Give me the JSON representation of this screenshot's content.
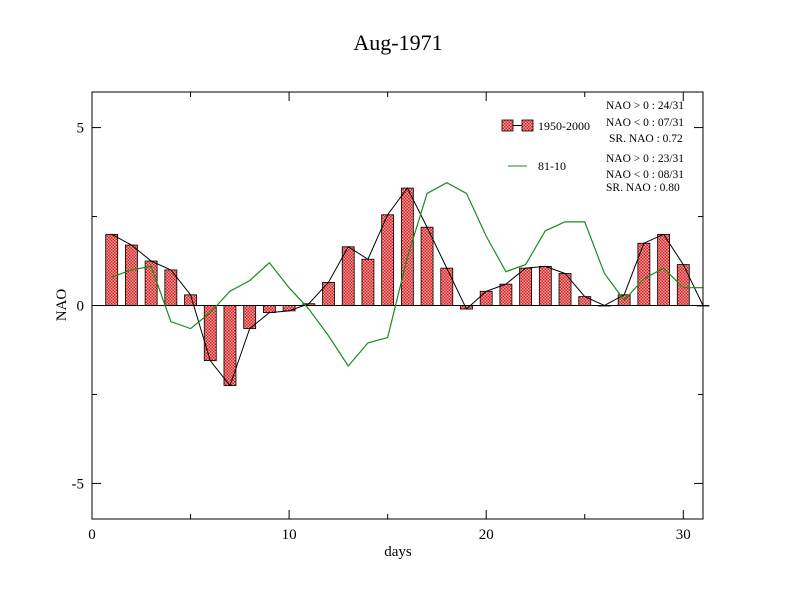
{
  "chart_data": {
    "type": "bar",
    "title": "Aug-1971",
    "xlabel": "days",
    "ylabel": "NAO",
    "xlim": [
      0,
      31
    ],
    "ylim": [
      -6,
      6
    ],
    "xticks": [
      0,
      10,
      20,
      30
    ],
    "yticks": [
      -5,
      0,
      5
    ],
    "x": [
      1,
      2,
      3,
      4,
      5,
      6,
      7,
      8,
      9,
      10,
      11,
      12,
      13,
      14,
      15,
      16,
      17,
      18,
      19,
      20,
      21,
      22,
      23,
      24,
      25,
      26,
      27,
      28,
      29,
      30,
      31
    ],
    "series": [
      {
        "name": "1950-2000",
        "style": "bars-with-line",
        "color": "#e03030",
        "values": [
          2.0,
          1.7,
          1.25,
          1.0,
          0.3,
          -1.55,
          -2.25,
          -0.65,
          -0.2,
          -0.15,
          0.05,
          0.65,
          1.65,
          1.3,
          2.55,
          3.3,
          2.2,
          1.05,
          -0.1,
          0.4,
          0.6,
          1.05,
          1.1,
          0.9,
          0.25,
          0.0,
          0.3,
          1.75,
          2.0,
          1.15,
          0.0
        ]
      },
      {
        "name": "81-10",
        "style": "line",
        "color": "#1a8c1a",
        "values": [
          0.8,
          1.0,
          1.1,
          -0.45,
          -0.65,
          -0.2,
          0.4,
          0.7,
          1.2,
          0.5,
          -0.1,
          -0.85,
          -1.7,
          -1.05,
          -0.9,
          1.35,
          3.15,
          3.45,
          3.15,
          1.95,
          0.95,
          1.15,
          2.1,
          2.35,
          2.35,
          0.9,
          0.15,
          0.75,
          1.05,
          0.5,
          0.5
        ]
      }
    ],
    "legend_position": "top-right",
    "annotations": {
      "group1": [
        "NAO > 0 : 24/31",
        "NAO < 0 : 07/31",
        "SR. NAO :  0.72"
      ],
      "group2": [
        "NAO > 0 : 23/31",
        "NAO < 0 : 08/31",
        "SR. NAO :  0.80"
      ]
    },
    "grid": false
  }
}
